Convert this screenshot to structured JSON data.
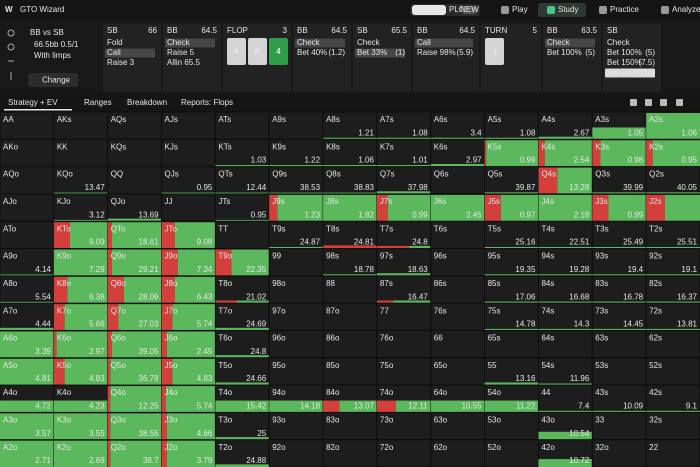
{
  "nav": {
    "brand": "GTO Wizard",
    "game_tabs": [
      "Hold'em",
      "PLO"
    ],
    "badge": "NEW",
    "links": [
      "Play",
      "Study",
      "Practice",
      "Analyze"
    ]
  },
  "scenario": {
    "title": "BB vs SB",
    "stack": "66.5bb 0.5/1",
    "option": "With limps",
    "button": "Change"
  },
  "actions": [
    {
      "player": "SB",
      "stack": "66",
      "options": [
        {
          "label": "Fold"
        },
        {
          "label": "Call",
          "selected": true
        },
        {
          "label": "Raise 3"
        }
      ]
    },
    {
      "player": "BB",
      "stack": "64.5",
      "options": [
        {
          "label": "Check",
          "selected": true
        },
        {
          "label": "Raise 5"
        },
        {
          "label": "Allin 65.5"
        }
      ]
    },
    {
      "street": "FLOP",
      "count": "3",
      "cards": [
        {
          "rank": "A",
          "color": "#d4d4d4"
        },
        {
          "rank": "K",
          "color": "#d4d4d4"
        },
        {
          "rank": "4",
          "color": "#2f9e4a"
        }
      ]
    },
    {
      "player": "BB",
      "stack": "64.5",
      "options": [
        {
          "label": "Check",
          "selected": true
        },
        {
          "label": "Bet 40%",
          "size": "(1.2)"
        }
      ]
    },
    {
      "player": "SB",
      "stack": "65.5",
      "options": [
        {
          "label": "Check"
        },
        {
          "label": "Bet 33%",
          "size": "(1)",
          "selected": true
        }
      ]
    },
    {
      "player": "BB",
      "stack": "64.5",
      "options": [
        {
          "label": "Call",
          "selected": true
        },
        {
          "label": "Raise 98%",
          "size": "(5.9)"
        }
      ]
    },
    {
      "street": "TURN",
      "count": "5",
      "cards": [
        {
          "rank": "J",
          "color": "#d4d4d4"
        }
      ]
    },
    {
      "player": "BB",
      "stack": "63.5",
      "options": [
        {
          "label": "Check",
          "selected": true
        },
        {
          "label": "Bet 100%",
          "size": "(5)"
        }
      ]
    },
    {
      "player": "SB",
      "options": [
        {
          "label": "Check"
        },
        {
          "label": "Bet 100%",
          "size": "(5)"
        },
        {
          "label": "Bet 150%",
          "size": "(7.5)"
        },
        {
          "label": "Bet 200%",
          "size": "(10)",
          "selected": true
        }
      ]
    }
  ],
  "tabs": [
    "Strategy + EV",
    "Ranges",
    "Breakdown",
    "Reports: Flops"
  ],
  "hand_grid": {
    "colors": {
      "bet": "#d33f3a",
      "check": "#5cb85c"
    },
    "rows": [
      [
        {
          "hand": "AA"
        },
        {
          "hand": "AKs"
        },
        {
          "hand": "AQs"
        },
        {
          "hand": "AJs"
        },
        {
          "hand": "ATs"
        },
        {
          "hand": "A9s"
        },
        {
          "hand": "A8s",
          "ev": 1.21,
          "range": 0.06,
          "bet": 0
        },
        {
          "hand": "A7s",
          "ev": 1.08,
          "range": 0.06,
          "bet": 0
        },
        {
          "hand": "A6s",
          "ev": 3.4,
          "range": 0.06,
          "bet": 0
        },
        {
          "hand": "A5s",
          "ev": 1.08,
          "range": 0.06,
          "bet": 0
        },
        {
          "hand": "A4s",
          "ev": 2.67,
          "range": 0.1,
          "bet": 0
        },
        {
          "hand": "A3s",
          "ev": 1.05,
          "range": 0.45,
          "bet": 0
        },
        {
          "hand": "A2s",
          "ev": 1.06,
          "range": 1,
          "bet": 0
        }
      ],
      [
        {
          "hand": "AKo"
        },
        {
          "hand": "KK"
        },
        {
          "hand": "KQs"
        },
        {
          "hand": "KJs"
        },
        {
          "hand": "KTs",
          "ev": 1.03,
          "range": 0.06,
          "bet": 0
        },
        {
          "hand": "K9s",
          "ev": 1.22,
          "range": 0.06,
          "bet": 0
        },
        {
          "hand": "K8s",
          "ev": 1.06,
          "range": 0.06,
          "bet": 0
        },
        {
          "hand": "K7s",
          "ev": 1.01,
          "range": 0.06,
          "bet": 0
        },
        {
          "hand": "K6s",
          "ev": 2.97,
          "range": 0.1,
          "bet": 0
        },
        {
          "hand": "K5s",
          "ev": 0.99,
          "range": 1,
          "bet": 0.03
        },
        {
          "hand": "K4s",
          "ev": 2.54,
          "range": 1,
          "bet": 0.12
        },
        {
          "hand": "K3s",
          "ev": 0.98,
          "range": 1,
          "bet": 0.15
        },
        {
          "hand": "K2s",
          "ev": 0.95,
          "range": 1,
          "bet": 0.12
        }
      ],
      [
        {
          "hand": "AQo"
        },
        {
          "hand": "KQo",
          "ev": 13.47,
          "range": 0.05,
          "bet": 0
        },
        {
          "hand": "QQ"
        },
        {
          "hand": "QJs",
          "ev": 0.95,
          "range": 0.05,
          "bet": 0
        },
        {
          "hand": "QTs",
          "ev": 12.44,
          "range": 0.05,
          "bet": 0
        },
        {
          "hand": "Q9s",
          "ev": 38.53,
          "range": 0.05,
          "bet": 0
        },
        {
          "hand": "Q8s",
          "ev": 38.83,
          "range": 0.05,
          "bet": 0
        },
        {
          "hand": "Q7s",
          "ev": 37.98,
          "range": 0.1,
          "bet": 0
        },
        {
          "hand": "Q6s"
        },
        {
          "hand": "Q5s",
          "ev": 39.87,
          "range": 0.06,
          "bet": 0
        },
        {
          "hand": "Q4s",
          "ev": 13.28,
          "range": 1,
          "bet": 0.35
        },
        {
          "hand": "Q3s",
          "ev": 39.99,
          "range": 0.06,
          "bet": 0
        },
        {
          "hand": "Q2s",
          "ev": 40.05,
          "range": 0.06,
          "bet": 0
        }
      ],
      [
        {
          "hand": "AJo"
        },
        {
          "hand": "KJo",
          "ev": 3.12,
          "range": 0.05,
          "bet": 0
        },
        {
          "hand": "QJo",
          "ev": 13.69,
          "range": 0.1,
          "bet": 0
        },
        {
          "hand": "JJ"
        },
        {
          "hand": "JTs",
          "ev": 0.95,
          "range": 0.05,
          "bet": 0
        },
        {
          "hand": "J9s",
          "ev": 1.23,
          "range": 1,
          "bet": 0.15
        },
        {
          "hand": "J8s",
          "ev": 1.82,
          "range": 1,
          "bet": 0
        },
        {
          "hand": "J7s",
          "ev": 0.99,
          "range": 1,
          "bet": 0.2
        },
        {
          "hand": "J6s",
          "ev": 2.45,
          "range": 1,
          "bet": 0
        },
        {
          "hand": "J5s",
          "ev": 0.97,
          "range": 1,
          "bet": 0.3
        },
        {
          "hand": "J4s",
          "ev": 2.18,
          "range": 1,
          "bet": 0
        },
        {
          "hand": "J3s",
          "ev": 0.99,
          "range": 1,
          "bet": 0.3
        },
        {
          "hand": "J2s",
          "range": 1,
          "bet": 0.35
        }
      ],
      [
        {
          "hand": "ATo"
        },
        {
          "hand": "KTo",
          "ev": 9.09,
          "range": 1,
          "bet": 0.3
        },
        {
          "hand": "QTo",
          "ev": 18.61,
          "range": 1,
          "bet": 0.08
        },
        {
          "hand": "JTo",
          "ev": 9.08,
          "range": 1,
          "bet": 0.25
        },
        {
          "hand": "TT"
        },
        {
          "hand": "T9s",
          "ev": 24.87,
          "range": 0.06,
          "bet": 0
        },
        {
          "hand": "T8s",
          "ev": 24.81,
          "range": 0.12,
          "bet": 1
        },
        {
          "hand": "T7s",
          "ev": 24.8,
          "range": 0.1,
          "bet": 0.6
        },
        {
          "hand": "T6s"
        },
        {
          "hand": "T5s",
          "ev": 25.16,
          "range": 0.06,
          "bet": 0
        },
        {
          "hand": "T4s",
          "ev": 22.51,
          "range": 0.06,
          "bet": 0
        },
        {
          "hand": "T3s",
          "ev": 25.49,
          "range": 0.06,
          "bet": 0
        },
        {
          "hand": "T2s",
          "ev": 25.51,
          "range": 0.06,
          "bet": 0
        }
      ],
      [
        {
          "hand": "A9o",
          "ev": 4.14,
          "range": 0.05,
          "bet": 0
        },
        {
          "hand": "K9o",
          "ev": 7.29,
          "range": 1,
          "bet": 0
        },
        {
          "hand": "Q9o",
          "ev": 29.21,
          "range": 1,
          "bet": 0.08
        },
        {
          "hand": "J9o",
          "ev": 7.34,
          "range": 1,
          "bet": 0.3
        },
        {
          "hand": "T9o",
          "ev": 22.35,
          "range": 1,
          "bet": 0.3
        },
        {
          "hand": "99"
        },
        {
          "hand": "98s",
          "ev": 18.78,
          "range": 0.06,
          "bet": 0
        },
        {
          "hand": "97s",
          "ev": 18.63,
          "range": 0.1,
          "bet": 0
        },
        {
          "hand": "96s"
        },
        {
          "hand": "95s",
          "ev": 19.35,
          "range": 0.06,
          "bet": 0
        },
        {
          "hand": "94s",
          "ev": 19.28,
          "range": 0.06,
          "bet": 0
        },
        {
          "hand": "93s",
          "ev": 19.4,
          "range": 0.06,
          "bet": 0
        },
        {
          "hand": "92s",
          "ev": 19.1,
          "range": 0.06,
          "bet": 0
        }
      ],
      [
        {
          "hand": "A8o",
          "ev": 5.54,
          "range": 0.05,
          "bet": 0
        },
        {
          "hand": "K8o",
          "ev": 6.38,
          "range": 1,
          "bet": 0.25
        },
        {
          "hand": "Q8o",
          "ev": 28.06,
          "range": 1,
          "bet": 0.3
        },
        {
          "hand": "J8o",
          "ev": 6.43,
          "range": 1,
          "bet": 0.25
        },
        {
          "hand": "T8o",
          "ev": 21.02,
          "range": 0.1,
          "bet": 0.4
        },
        {
          "hand": "98o"
        },
        {
          "hand": "88"
        },
        {
          "hand": "87s",
          "ev": 16.47,
          "range": 0.1,
          "bet": 0.3
        },
        {
          "hand": "86s"
        },
        {
          "hand": "85s",
          "ev": 17.06,
          "range": 0.06,
          "bet": 0
        },
        {
          "hand": "84s",
          "ev": 16.68,
          "range": 0.06,
          "bet": 0
        },
        {
          "hand": "83s",
          "ev": 16.78,
          "range": 0.06,
          "bet": 0
        },
        {
          "hand": "82s",
          "ev": 16.37,
          "range": 0.06,
          "bet": 0
        }
      ],
      [
        {
          "hand": "A7o",
          "ev": 4.44,
          "range": 0.1,
          "bet": 0
        },
        {
          "hand": "K7o",
          "ev": 5.66,
          "range": 1,
          "bet": 0.2
        },
        {
          "hand": "Q7o",
          "ev": 27.03,
          "range": 1,
          "bet": 0.2
        },
        {
          "hand": "J7o",
          "ev": 5.74,
          "range": 1,
          "bet": 0.2
        },
        {
          "hand": "T7o",
          "ev": 24.69,
          "range": 0.1,
          "bet": 0
        },
        {
          "hand": "97o"
        },
        {
          "hand": "87o"
        },
        {
          "hand": "77"
        },
        {
          "hand": "76s"
        },
        {
          "hand": "75s",
          "ev": 14.78,
          "range": 0.06,
          "bet": 0
        },
        {
          "hand": "74s",
          "ev": 14.3,
          "range": 0.06,
          "bet": 0
        },
        {
          "hand": "73s",
          "ev": 14.45,
          "range": 0.06,
          "bet": 0
        },
        {
          "hand": "72s",
          "ev": 13.81,
          "range": 0.06,
          "bet": 0
        }
      ],
      [
        {
          "hand": "A6o",
          "ev": 3.39,
          "range": 1,
          "bet": 0
        },
        {
          "hand": "K6o",
          "ev": 2.97,
          "range": 1,
          "bet": 0.05
        },
        {
          "hand": "Q6o",
          "ev": 39.05,
          "range": 1,
          "bet": 0.08
        },
        {
          "hand": "J6o",
          "ev": 2.45,
          "range": 1,
          "bet": 0.1
        },
        {
          "hand": "T6o",
          "ev": 24.8,
          "range": 0.1,
          "bet": 0
        },
        {
          "hand": "96o"
        },
        {
          "hand": "86o"
        },
        {
          "hand": "76o"
        },
        {
          "hand": "66"
        },
        {
          "hand": "65s"
        },
        {
          "hand": "64s"
        },
        {
          "hand": "63s"
        },
        {
          "hand": "62s"
        }
      ],
      [
        {
          "hand": "A5o",
          "ev": 4.81,
          "range": 1,
          "bet": 0
        },
        {
          "hand": "K5o",
          "ev": 4.83,
          "range": 1,
          "bet": 0.2
        },
        {
          "hand": "Q5o",
          "ev": 36.78,
          "range": 1,
          "bet": 0.05
        },
        {
          "hand": "J5o",
          "ev": 4.83,
          "range": 1,
          "bet": 0.2
        },
        {
          "hand": "T5o",
          "ev": 24.66,
          "range": 0.1,
          "bet": 0
        },
        {
          "hand": "95o"
        },
        {
          "hand": "85o"
        },
        {
          "hand": "75o"
        },
        {
          "hand": "65o"
        },
        {
          "hand": "55",
          "ev": 13.16,
          "range": 0.1,
          "bet": 0
        },
        {
          "hand": "54s",
          "ev": 11.96,
          "range": 0.06,
          "bet": 0
        },
        {
          "hand": "53s"
        },
        {
          "hand": "52s"
        }
      ],
      [
        {
          "hand": "A4o",
          "ev": 4.72,
          "range": 0.45,
          "bet": 0
        },
        {
          "hand": "K4o",
          "ev": 4.23,
          "range": 0.45,
          "bet": 0
        },
        {
          "hand": "Q4o",
          "ev": 12.25,
          "range": 1,
          "bet": 0.05
        },
        {
          "hand": "J4o",
          "ev": 5.74,
          "range": 1,
          "bet": 0.08
        },
        {
          "hand": "T4o",
          "ev": 15.42,
          "range": 0.45,
          "bet": 0
        },
        {
          "hand": "94o",
          "ev": 14.18,
          "range": 0.45,
          "bet": 0
        },
        {
          "hand": "84o",
          "ev": 13.07,
          "range": 0.45,
          "bet": 0.3
        },
        {
          "hand": "74o",
          "ev": 12.11,
          "range": 0.45,
          "bet": 0.35
        },
        {
          "hand": "64o",
          "ev": 10.55,
          "range": 0.45,
          "bet": 0
        },
        {
          "hand": "54o",
          "ev": 11.22,
          "range": 0.45,
          "bet": 0
        },
        {
          "hand": "44",
          "ev": 7.4,
          "range": 0.06,
          "bet": 0
        },
        {
          "hand": "43s",
          "ev": 10.09,
          "range": 0.06,
          "bet": 0
        },
        {
          "hand": "42s",
          "ev": 9.1,
          "range": 0.06,
          "bet": 0
        }
      ],
      [
        {
          "hand": "A3o",
          "ev": 3.57,
          "range": 1,
          "bet": 0
        },
        {
          "hand": "K3o",
          "ev": 3.55,
          "range": 1,
          "bet": 0
        },
        {
          "hand": "Q3o",
          "ev": 38.56,
          "range": 1,
          "bet": 0.05
        },
        {
          "hand": "J3o",
          "ev": 4.66,
          "range": 1,
          "bet": 0.1
        },
        {
          "hand": "T3o",
          "ev": 25,
          "range": 0.1,
          "bet": 0
        },
        {
          "hand": "93o"
        },
        {
          "hand": "83o"
        },
        {
          "hand": "73o"
        },
        {
          "hand": "63o"
        },
        {
          "hand": "53o"
        },
        {
          "hand": "43o",
          "ev": 10.54,
          "range": 0.3,
          "bet": 0
        },
        {
          "hand": "33"
        },
        {
          "hand": "32s"
        }
      ],
      [
        {
          "hand": "A2o",
          "ev": 2.71,
          "range": 1,
          "bet": 0
        },
        {
          "hand": "K2o",
          "ev": 2.69,
          "range": 1,
          "bet": 0
        },
        {
          "hand": "Q2o",
          "ev": 38.7,
          "range": 1,
          "bet": 0.05
        },
        {
          "hand": "J2o",
          "ev": 3.79,
          "range": 1,
          "bet": 0.1
        },
        {
          "hand": "T2o",
          "ev": 24.88,
          "range": 0.1,
          "bet": 0
        },
        {
          "hand": "92o"
        },
        {
          "hand": "82o"
        },
        {
          "hand": "72o"
        },
        {
          "hand": "62o"
        },
        {
          "hand": "52o"
        },
        {
          "hand": "42o",
          "ev": 10.72,
          "range": 0.3,
          "bet": 0
        },
        {
          "hand": "32o"
        },
        {
          "hand": "22"
        }
      ]
    ]
  }
}
